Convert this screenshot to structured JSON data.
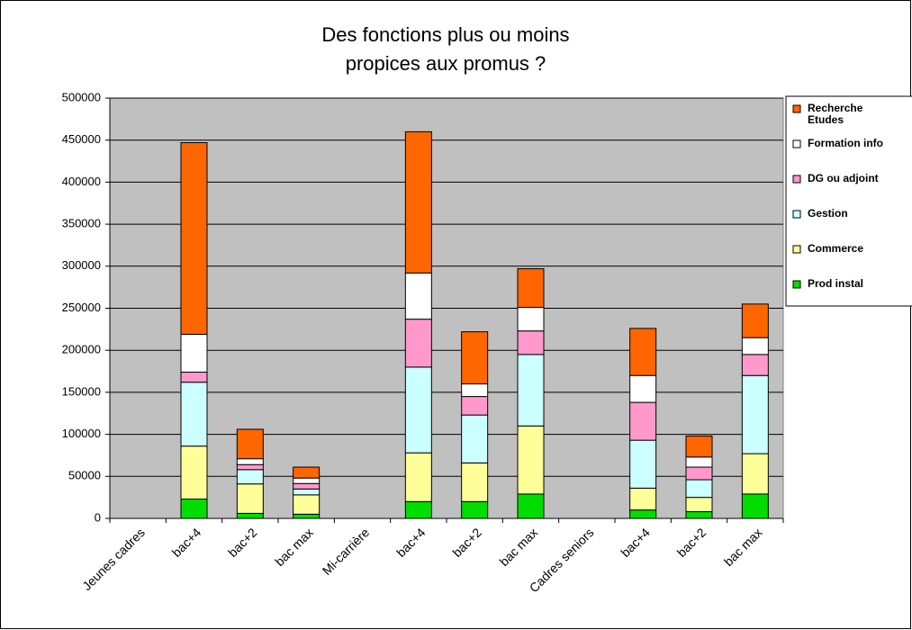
{
  "chart_data": {
    "type": "stacked_bar",
    "title": [
      "Des fonctions plus ou moins",
      "propices aux promus ?"
    ],
    "categories": [
      "Jeunes cadres",
      "bac+4",
      "bac+2",
      "bac max",
      "Mi-carrière",
      "bac+4",
      "bac+2",
      "bac max",
      "Cadres seniors",
      "bac+4",
      "bac+2",
      "bac max"
    ],
    "series": [
      {
        "name": "Prod instal",
        "color": "#00dd00",
        "values": [
          null,
          23000,
          6000,
          5000,
          null,
          20000,
          20000,
          29000,
          null,
          10000,
          8000,
          29000
        ]
      },
      {
        "name": "Commerce",
        "color": "#ffff99",
        "values": [
          null,
          63000,
          35000,
          23000,
          null,
          58000,
          46000,
          81000,
          null,
          26000,
          17000,
          48000
        ]
      },
      {
        "name": "Gestion",
        "color": "#ccffff",
        "values": [
          null,
          76000,
          17000,
          7000,
          null,
          102000,
          57000,
          85000,
          null,
          57000,
          21000,
          93000
        ]
      },
      {
        "name": "DG ou adjoint",
        "color": "#ff99cc",
        "values": [
          null,
          12000,
          6000,
          6500,
          null,
          57000,
          22000,
          28000,
          null,
          45000,
          15000,
          25000
        ]
      },
      {
        "name": "Formation info",
        "color": "#ffffff",
        "values": [
          null,
          45000,
          7000,
          6500,
          null,
          55000,
          15000,
          28000,
          null,
          32000,
          12000,
          20000
        ]
      },
      {
        "name": "Recherche Etudes",
        "color": "#ff6600",
        "values": [
          null,
          228000,
          35000,
          13000,
          null,
          168000,
          62000,
          46000,
          null,
          56000,
          25000,
          40000
        ]
      }
    ],
    "ylim": [
      0,
      500000
    ],
    "yticks": [
      0,
      50000,
      100000,
      150000,
      200000,
      250000,
      300000,
      350000,
      400000,
      450000,
      500000
    ],
    "grid": true,
    "plot_background": "#c0c0c0",
    "legend": "right"
  }
}
